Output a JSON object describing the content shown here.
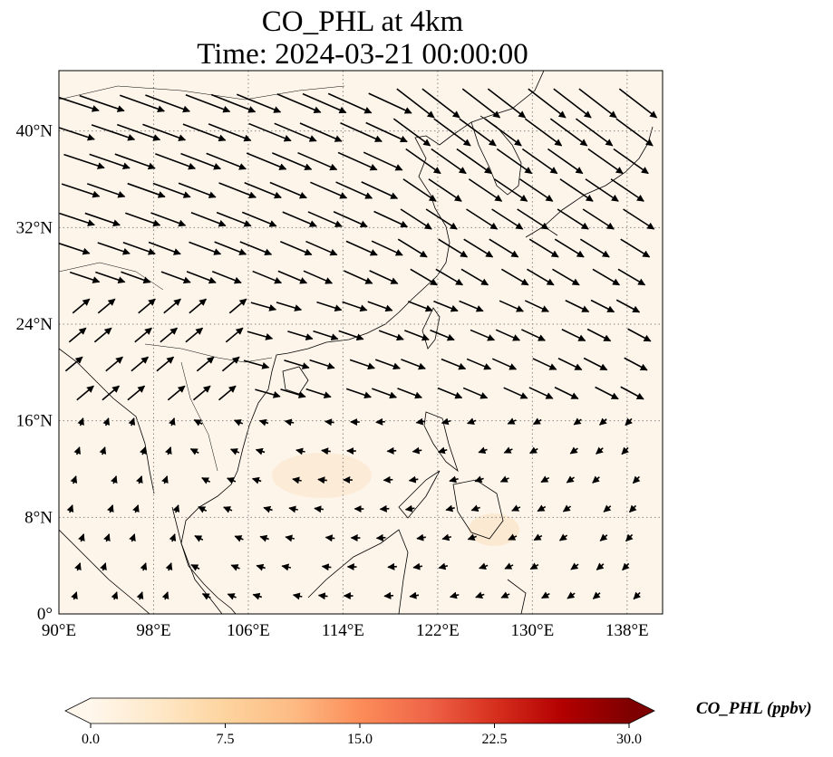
{
  "title": {
    "line1": "CO_PHL at 4km",
    "line2": "Time: 2024-03-21 00:00:00"
  },
  "map": {
    "lon_range": [
      90,
      141
    ],
    "lat_range": [
      0,
      45
    ],
    "background_color": "#fdf5ea",
    "coastline_color": "#000000",
    "gridline_style": "dotted",
    "x_ticks": [
      {
        "value": 90,
        "label": "90°E"
      },
      {
        "value": 98,
        "label": "98°E"
      },
      {
        "value": 106,
        "label": "106°E"
      },
      {
        "value": 114,
        "label": "114°E"
      },
      {
        "value": 122,
        "label": "122°E"
      },
      {
        "value": 130,
        "label": "130°E"
      },
      {
        "value": 138,
        "label": "138°E"
      }
    ],
    "y_ticks": [
      {
        "value": 0,
        "label": "0°"
      },
      {
        "value": 8,
        "label": "8°N"
      },
      {
        "value": 16,
        "label": "16°N"
      },
      {
        "value": 24,
        "label": "24°N"
      },
      {
        "value": 32,
        "label": "32°N"
      },
      {
        "value": 40,
        "label": "40°N"
      }
    ]
  },
  "colorbar": {
    "label": "CO_PHL (ppbv)",
    "min": 0.0,
    "max": 30.0,
    "extend": "both",
    "colormap": "OrRd",
    "colors": [
      "#fff7ec",
      "#fee8c8",
      "#fdd49e",
      "#fdbb84",
      "#fc8d59",
      "#ef6548",
      "#d7301f",
      "#b30000",
      "#7f0000"
    ],
    "ticks": [
      {
        "value": 0.0,
        "label": "0.0"
      },
      {
        "value": 7.5,
        "label": "7.5"
      },
      {
        "value": 15.0,
        "label": "15.0"
      },
      {
        "value": 22.5,
        "label": "22.5"
      },
      {
        "value": 30.0,
        "label": "30.0"
      }
    ]
  }
}
